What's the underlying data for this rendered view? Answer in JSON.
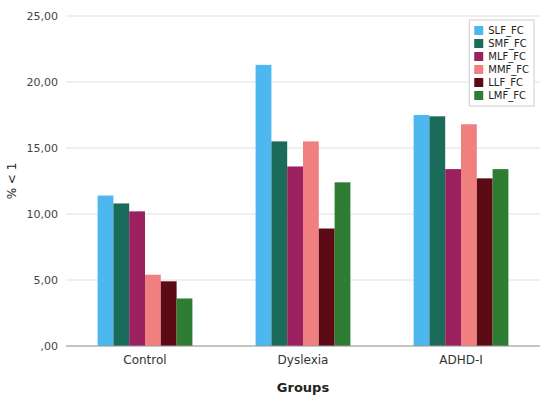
{
  "chart_data": {
    "type": "bar",
    "categories": [
      "Control",
      "Dyslexia",
      "ADHD-I"
    ],
    "series": [
      {
        "name": "SLF_FC",
        "color": "#4db8f0",
        "values": [
          11.4,
          21.3,
          17.5
        ]
      },
      {
        "name": "SMF_FC",
        "color": "#1a6b5a",
        "values": [
          10.8,
          15.5,
          17.4
        ]
      },
      {
        "name": "MLF_FC",
        "color": "#9b2060",
        "values": [
          10.2,
          13.6,
          13.4
        ]
      },
      {
        "name": "MMF_FC",
        "color": "#f08080",
        "values": [
          5.4,
          15.5,
          16.8
        ]
      },
      {
        "name": "LLF_FC",
        "color": "#5c0a14",
        "values": [
          4.9,
          8.9,
          12.7
        ]
      },
      {
        "name": "LMF_FC",
        "color": "#2e7d32",
        "values": [
          3.6,
          12.4,
          13.4
        ]
      }
    ],
    "xlabel": "Groups",
    "ylabel": "% < 1",
    "ylim": [
      0,
      25
    ],
    "yticks": [
      {
        "value": 0,
        "label": ",00"
      },
      {
        "value": 5,
        "label": "5,00"
      },
      {
        "value": 10,
        "label": "10,00"
      },
      {
        "value": 15,
        "label": "15,00"
      },
      {
        "value": 20,
        "label": "20,00"
      },
      {
        "value": 25,
        "label": "25,00"
      }
    ],
    "grid": true,
    "legend": "upper right"
  }
}
